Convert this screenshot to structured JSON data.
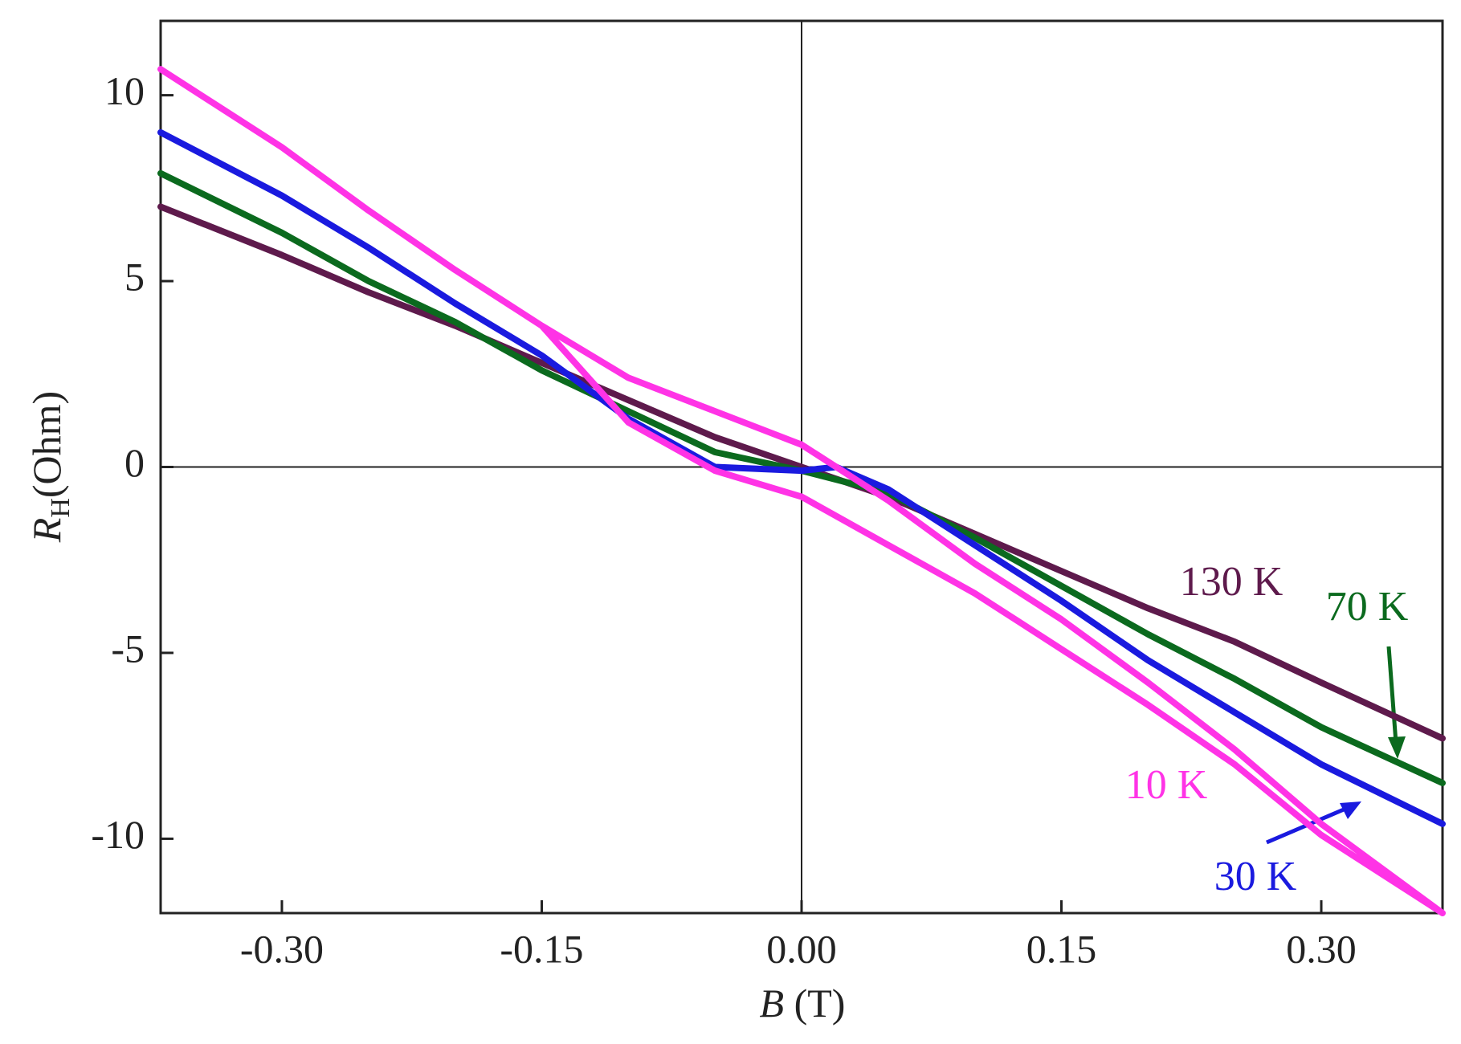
{
  "chart_data": {
    "type": "line",
    "xlabel": {
      "symbol": "B",
      "unit": "(T)"
    },
    "ylabel": {
      "symbol": "R",
      "subscript": "H",
      "unit": "(Ohm)"
    },
    "xlim": [
      -0.37,
      0.37
    ],
    "ylim": [
      -12,
      12
    ],
    "xticks": [
      {
        "value": -0.3,
        "label": "-0.30"
      },
      {
        "value": -0.15,
        "label": "-0.15"
      },
      {
        "value": 0,
        "label": "0.00"
      },
      {
        "value": 0.15,
        "label": "0.15"
      },
      {
        "value": 0.3,
        "label": "0.30"
      }
    ],
    "yticks": [
      -10,
      -5,
      0,
      5,
      10
    ],
    "series": [
      {
        "name": "130 K",
        "color": "#5e1a4c",
        "x": [
          -0.37,
          -0.3,
          -0.25,
          -0.2,
          -0.15,
          -0.1,
          -0.05,
          0,
          0.05,
          0.1,
          0.15,
          0.2,
          0.25,
          0.3,
          0.37
        ],
        "values": [
          7.0,
          5.7,
          4.7,
          3.8,
          2.8,
          1.8,
          0.8,
          0,
          -0.8,
          -1.8,
          -2.8,
          -3.8,
          -4.7,
          -5.8,
          -7.3
        ]
      },
      {
        "name": "70 K",
        "color": "#0b6a1e",
        "x": [
          -0.37,
          -0.3,
          -0.25,
          -0.2,
          -0.15,
          -0.1,
          -0.05,
          0,
          0.05,
          0.1,
          0.15,
          0.2,
          0.25,
          0.3,
          0.37
        ],
        "values": [
          7.9,
          6.3,
          5.0,
          3.9,
          2.6,
          1.5,
          0.4,
          -0.1,
          -0.7,
          -1.9,
          -3.2,
          -4.5,
          -5.7,
          -7.0,
          -8.5
        ]
      },
      {
        "name": "30 K",
        "color": "#1a1adf",
        "x": [
          -0.37,
          -0.3,
          -0.25,
          -0.2,
          -0.15,
          -0.1,
          -0.05,
          0,
          0.02,
          0.05,
          0.1,
          0.15,
          0.2,
          0.25,
          0.3,
          0.37
        ],
        "values": [
          9.0,
          7.3,
          5.9,
          4.4,
          3.0,
          1.3,
          0.0,
          -0.1,
          0.0,
          -0.6,
          -2.1,
          -3.6,
          -5.2,
          -6.6,
          -8.0,
          -9.6
        ]
      },
      {
        "name": "10 K",
        "color": "#ff33e6",
        "x": [
          -0.37,
          -0.3,
          -0.25,
          -0.2,
          -0.15,
          -0.1,
          -0.05,
          0,
          0.05,
          0.1,
          0.15,
          0.2,
          0.25,
          0.3,
          0.37,
          0.3,
          0.25,
          0.2,
          0.15,
          0.1,
          0.05,
          0,
          -0.05,
          -0.1,
          -0.15
        ],
        "values": [
          10.7,
          8.6,
          6.9,
          5.3,
          3.8,
          1.2,
          -0.1,
          -0.8,
          -2.1,
          -3.4,
          -4.9,
          -6.4,
          -8.0,
          -9.9,
          -12.0,
          -9.6,
          -7.6,
          -5.8,
          -4.1,
          -2.6,
          -0.9,
          0.6,
          1.5,
          2.4,
          3.8
        ]
      }
    ]
  }
}
